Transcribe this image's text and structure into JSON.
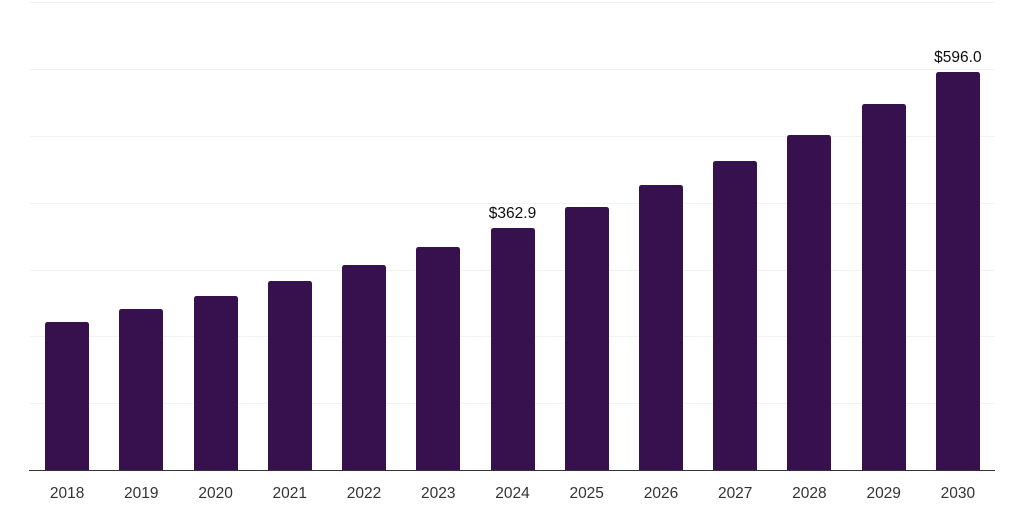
{
  "chart_data": {
    "type": "bar",
    "title": "",
    "xlabel": "",
    "ylabel": "",
    "categories": [
      "2018",
      "2019",
      "2020",
      "2021",
      "2022",
      "2023",
      "2024",
      "2025",
      "2026",
      "2027",
      "2028",
      "2029",
      "2030"
    ],
    "values": [
      221.0,
      241.0,
      260.0,
      283.5,
      307.0,
      334.3,
      362.9,
      393.5,
      427.3,
      463.2,
      501.9,
      547.4,
      596.0
    ],
    "data_labels": [
      "",
      "",
      "",
      "",
      "",
      "",
      "$362.9",
      "",
      "",
      "",
      "",
      "",
      "$596.0"
    ],
    "ylim": [
      0,
      700
    ],
    "gridline_step": 100,
    "grid": "horizontal",
    "legend_position": "none",
    "y_tick_labels_visible": false,
    "colors": {
      "bar": "#36114E",
      "gridline": "#F2F2F2",
      "axis_line": "#333333",
      "value_label": "#0D0D0D",
      "tick_label": "#333333",
      "background": "#FFFFFF"
    }
  }
}
